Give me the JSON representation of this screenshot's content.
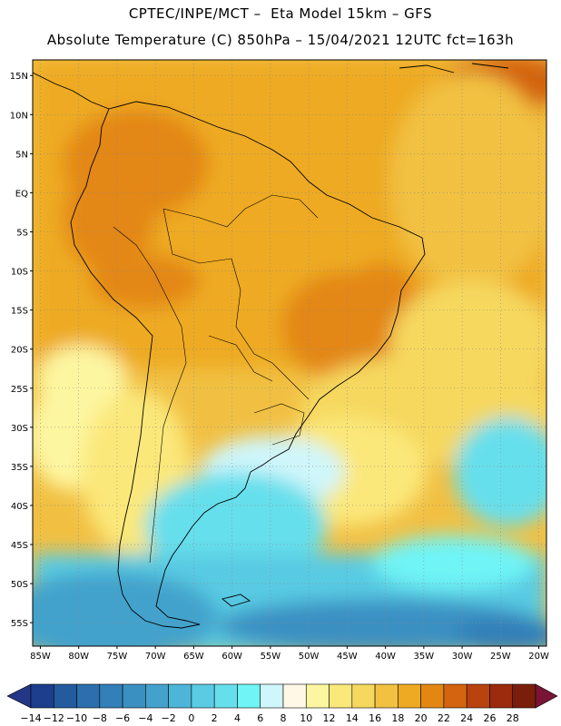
{
  "header": {
    "title_line1": "CPTEC/INPE/MCT –  Eta Model 15km – GFS",
    "title_line2": "Absolute Temperature (C) 850hPa – 15/04/2021 12UTC fct=163h"
  },
  "map": {
    "lon_range": [
      -86,
      -19
    ],
    "lat_range": [
      -58,
      17
    ],
    "lat_ticks": [
      {
        "value": 15,
        "label": "15N"
      },
      {
        "value": 10,
        "label": "10N"
      },
      {
        "value": 5,
        "label": "5N"
      },
      {
        "value": 0,
        "label": "EQ"
      },
      {
        "value": -5,
        "label": "5S"
      },
      {
        "value": -10,
        "label": "10S"
      },
      {
        "value": -15,
        "label": "15S"
      },
      {
        "value": -20,
        "label": "20S"
      },
      {
        "value": -25,
        "label": "25S"
      },
      {
        "value": -30,
        "label": "30S"
      },
      {
        "value": -35,
        "label": "35S"
      },
      {
        "value": -40,
        "label": "40S"
      },
      {
        "value": -45,
        "label": "45S"
      },
      {
        "value": -50,
        "label": "50S"
      },
      {
        "value": -55,
        "label": "55S"
      }
    ],
    "lon_ticks": [
      {
        "value": -85,
        "label": "85W"
      },
      {
        "value": -80,
        "label": "80W"
      },
      {
        "value": -75,
        "label": "75W"
      },
      {
        "value": -70,
        "label": "70W"
      },
      {
        "value": -65,
        "label": "65W"
      },
      {
        "value": -60,
        "label": "60W"
      },
      {
        "value": -55,
        "label": "55W"
      },
      {
        "value": -50,
        "label": "50W"
      },
      {
        "value": -45,
        "label": "45W"
      },
      {
        "value": -40,
        "label": "40W"
      },
      {
        "value": -35,
        "label": "35W"
      },
      {
        "value": -30,
        "label": "30W"
      },
      {
        "value": -25,
        "label": "25W"
      },
      {
        "value": -20,
        "label": "20W"
      }
    ],
    "gridlines": true
  },
  "colorbar": {
    "labels": [
      "-14",
      "-12",
      "-10",
      "-8",
      "-6",
      "-4",
      "-2",
      "0",
      "2",
      "4",
      "6",
      "8",
      "10",
      "12",
      "14",
      "16",
      "18",
      "20",
      "22",
      "24",
      "26",
      "28"
    ],
    "colors": [
      "#1c3e8c",
      "#245a9e",
      "#2b6fae",
      "#337fb8",
      "#3b90c2",
      "#43a2cc",
      "#4db6d8",
      "#59cbe3",
      "#66dfec",
      "#70f4f6",
      "#cff6fb",
      "#fff8e6",
      "#fdf6a1",
      "#fbe87a",
      "#f6d85e",
      "#f2c142",
      "#eeaa22",
      "#e38712",
      "#d4640f",
      "#b9430e",
      "#9b2b0c",
      "#7a1e0c"
    ],
    "under_color": "#223787",
    "over_color": "#7a1435"
  }
}
